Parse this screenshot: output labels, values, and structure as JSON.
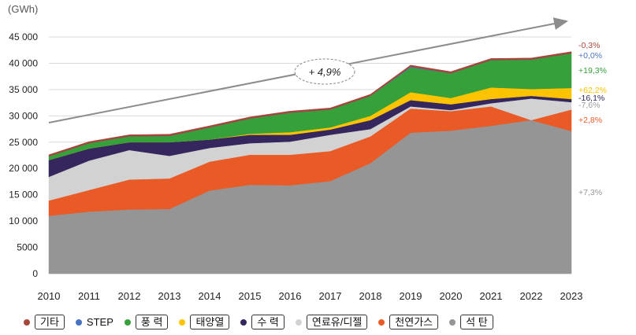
{
  "chart_data": {
    "type": "area",
    "stacked": true,
    "unit_label": "(GWh)",
    "title": "",
    "x": [
      "2010",
      "2011",
      "2012",
      "2013",
      "2014",
      "2015",
      "2016",
      "2017",
      "2018",
      "2019",
      "2020",
      "2021",
      "2022",
      "2023"
    ],
    "y_ticks": [
      "0",
      "5000",
      "10 000",
      "15 000",
      "20 000",
      "25 000",
      "30 000",
      "35 000",
      "40 000",
      "45 000"
    ],
    "ylim": [
      0,
      45000
    ],
    "trend_label": "+ 4,9%",
    "series": [
      {
        "name": "석탄",
        "color": "#959595",
        "values": [
          11000,
          11800,
          12200,
          12300,
          15800,
          16900,
          16800,
          17600,
          21000,
          26800,
          27200,
          28100,
          29200,
          27100
        ]
      },
      {
        "name": "천연가스",
        "color": "#e95a26",
        "values": [
          2900,
          4100,
          5700,
          5800,
          5500,
          5700,
          5800,
          5700,
          5100,
          4600,
          3700,
          3700,
          0,
          4100
        ]
      },
      {
        "name": "연료유/디젤",
        "color": "#d2d2d2",
        "values": [
          4500,
          5600,
          5600,
          4300,
          2600,
          2200,
          2500,
          3100,
          1400,
          400,
          200,
          600,
          4100,
          1400
        ]
      },
      {
        "name": "수력",
        "color": "#35275e",
        "values": [
          3200,
          2300,
          1500,
          2600,
          1600,
          1600,
          1300,
          1000,
          1700,
          1200,
          1100,
          800,
          500,
          600
        ]
      },
      {
        "name": "태양열",
        "color": "#fdc200",
        "values": [
          0,
          0,
          0,
          0,
          0,
          200,
          500,
          400,
          800,
          1500,
          1200,
          2200,
          1300,
          2100
        ]
      },
      {
        "name": "풍력",
        "color": "#36a03a",
        "values": [
          700,
          1000,
          1100,
          1200,
          2300,
          2900,
          3700,
          3400,
          3800,
          4700,
          4700,
          5200,
          5600,
          6600
        ]
      },
      {
        "name": "STEP",
        "color": "#4773c0",
        "values": [
          0,
          0,
          0,
          0,
          0,
          0,
          0,
          0,
          0,
          150,
          0,
          0,
          0,
          0
        ]
      },
      {
        "name": "기타",
        "color": "#a6463b",
        "values": [
          300,
          300,
          300,
          300,
          300,
          300,
          300,
          300,
          300,
          300,
          300,
          300,
          300,
          300
        ]
      }
    ],
    "growth_labels": [
      {
        "text": "-0,3%",
        "color": "#a6463b"
      },
      {
        "text": "+0,0%",
        "color": "#4773c0"
      },
      {
        "text": "+19,3%",
        "color": "#36a03a"
      },
      {
        "text": "+62,2%",
        "color": "#fdc200"
      },
      {
        "text": "-16,1%",
        "color": "#35275e"
      },
      {
        "text": "-7,6%",
        "color": "#9a9a9a"
      },
      {
        "text": "+2,8%",
        "color": "#e95a26"
      },
      {
        "text": "+7,3%",
        "color": "#959595"
      }
    ]
  },
  "legend": [
    {
      "label": "기타",
      "color": "#a6463b",
      "boxed": true
    },
    {
      "label": "STEP",
      "color": "#4773c0",
      "boxed": false
    },
    {
      "label": "풍 력",
      "color": "#36a03a",
      "boxed": true
    },
    {
      "label": "태양열",
      "color": "#fdc200",
      "boxed": true
    },
    {
      "label": "수   력",
      "color": "#35275e",
      "boxed": true
    },
    {
      "label": "연료유/디젤",
      "color": "#d2d2d2",
      "boxed": true
    },
    {
      "label": "천연가스",
      "color": "#e95a26",
      "boxed": true
    },
    {
      "label": "석       탄",
      "color": "#959595",
      "boxed": true
    }
  ]
}
